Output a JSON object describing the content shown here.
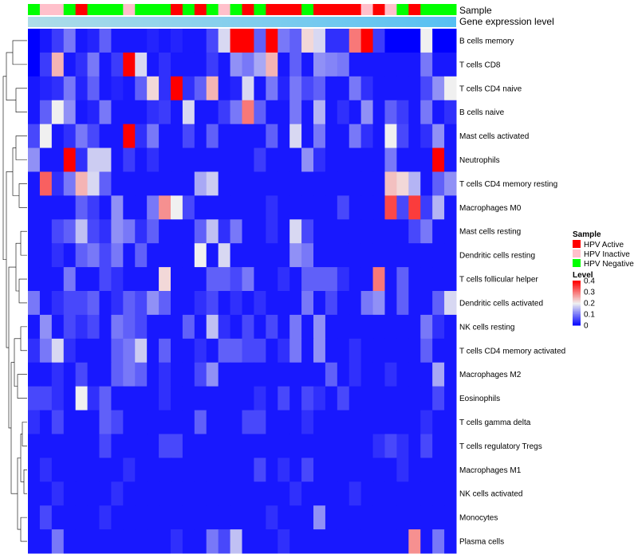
{
  "chart_data": {
    "type": "heatmap",
    "annotation_titles": [
      "Sample",
      "Gene expression level"
    ],
    "sample_labels": [
      "HPV Active",
      "HPV Inactive",
      "HPV Negative"
    ],
    "sample_colors": {
      "HPV Active": "#ff0000",
      "HPV Inactive": "#ffc0cb",
      "HPV Negative": "#00ff00"
    },
    "samples": [
      "N",
      "I",
      "I",
      "N",
      "A",
      "N",
      "N",
      "N",
      "I",
      "N",
      "N",
      "N",
      "A",
      "N",
      "A",
      "N",
      "I",
      "N",
      "A",
      "N",
      "A",
      "A",
      "A",
      "N",
      "A",
      "A",
      "A",
      "A",
      "I",
      "A",
      "I",
      "N",
      "A",
      "N",
      "N",
      "N"
    ],
    "gene_expression_bar": {
      "color_start": "#aedce8",
      "color_end": "#57c0f2"
    },
    "legend": {
      "sample_title": "Sample",
      "level_title": "Level",
      "level_ticks": [
        "0.4",
        "0.3",
        "0.2",
        "0.1",
        "0"
      ],
      "level_range": [
        0,
        0.4
      ]
    },
    "row_labels": [
      "B cells memory",
      "T cells CD8",
      "T cells CD4 naive",
      "B cells naive",
      "Mast cells activated",
      "Neutrophils",
      "T cells CD4 memory resting",
      "Macrophages M0",
      "Mast cells resting",
      "Dendritic cells resting",
      "T cells follicular helper",
      "Dendritic cells activated",
      "NK cells resting",
      "T cells CD4 memory activated",
      "Macrophages M2",
      "Eosinophils",
      "T cells gamma delta",
      "T cells regulatory  Tregs",
      "Macrophages M1",
      "NK cells activated",
      "Monocytes",
      "Plasma cells"
    ],
    "values": [
      [
        0,
        0.02,
        0.05,
        0.1,
        0.02,
        0.03,
        0.08,
        0.02,
        0.02,
        0.02,
        0.03,
        0.02,
        0.03,
        0.02,
        0.02,
        0.06,
        0.18,
        0.4,
        0.4,
        0.08,
        0.4,
        0.1,
        0.08,
        0.22,
        0.18,
        0.04,
        0.04,
        0.3,
        0.4,
        0.05,
        0,
        0,
        0,
        0.2,
        0,
        0
      ],
      [
        0,
        0.05,
        0.25,
        0.02,
        0.04,
        0.1,
        0.02,
        0.05,
        0.4,
        0.18,
        0.02,
        0.04,
        0.02,
        0.02,
        0.02,
        0.05,
        0.02,
        0.12,
        0.1,
        0.14,
        0.25,
        0.02,
        0.08,
        0.02,
        0.12,
        0.11,
        0.1,
        0.02,
        0.02,
        0.02,
        0.02,
        0.02,
        0.02,
        0.1,
        0.02,
        0.02
      ],
      [
        0.02,
        0.03,
        0.04,
        0.1,
        0.03,
        0.08,
        0.02,
        0.03,
        0.02,
        0.08,
        0.22,
        0.04,
        0.4,
        0.04,
        0.08,
        0.25,
        0.02,
        0.03,
        0.18,
        0.02,
        0.1,
        0.03,
        0.1,
        0.06,
        0.08,
        0.02,
        0.02,
        0.1,
        0.04,
        0.02,
        0.02,
        0.02,
        0.02,
        0.06,
        0.12,
        0.2
      ],
      [
        0.02,
        0.08,
        0.2,
        0.12,
        0.02,
        0.03,
        0.1,
        0.02,
        0.02,
        0.02,
        0.04,
        0.05,
        0.02,
        0.18,
        0.02,
        0.02,
        0.05,
        0.1,
        0.3,
        0.08,
        0.02,
        0.02,
        0.1,
        0.02,
        0.15,
        0.02,
        0.04,
        0.02,
        0.12,
        0.02,
        0.08,
        0.05,
        0.02,
        0.1,
        0.02,
        0.04
      ],
      [
        0.06,
        0.2,
        0.02,
        0.04,
        0.1,
        0.06,
        0.02,
        0.02,
        0.4,
        0.04,
        0.1,
        0.02,
        0.02,
        0.06,
        0.02,
        0.08,
        0.02,
        0.02,
        0.02,
        0.02,
        0.08,
        0.02,
        0.18,
        0.02,
        0.1,
        0.02,
        0.02,
        0.1,
        0.04,
        0.02,
        0.2,
        0.06,
        0.02,
        0.04,
        0.12,
        0.02
      ],
      [
        0.12,
        0.02,
        0.02,
        0.4,
        0.04,
        0.17,
        0.17,
        0.02,
        0.05,
        0.02,
        0.04,
        0.02,
        0.02,
        0.02,
        0.02,
        0.02,
        0.02,
        0.02,
        0.02,
        0.05,
        0.02,
        0.02,
        0.02,
        0.12,
        0.04,
        0.02,
        0.02,
        0.02,
        0.02,
        0.02,
        0.1,
        0.02,
        0.02,
        0.02,
        0.4,
        0.02
      ],
      [
        0.02,
        0.32,
        0.04,
        0.1,
        0.25,
        0.18,
        0.08,
        0.02,
        0.02,
        0.02,
        0.02,
        0.02,
        0.02,
        0.02,
        0.14,
        0.17,
        0.02,
        0.02,
        0.02,
        0.02,
        0.02,
        0.02,
        0.02,
        0.02,
        0.02,
        0.02,
        0.02,
        0.02,
        0.02,
        0.02,
        0.24,
        0.22,
        0.15,
        0.02,
        0.08,
        0.12
      ],
      [
        0.02,
        0.02,
        0.02,
        0.02,
        0.08,
        0.05,
        0.02,
        0.12,
        0.02,
        0.02,
        0.1,
        0.28,
        0.2,
        0.06,
        0.02,
        0.02,
        0.02,
        0.02,
        0.02,
        0.02,
        0.04,
        0.02,
        0.02,
        0.02,
        0.02,
        0.02,
        0.06,
        0.02,
        0.02,
        0.02,
        0.34,
        0.06,
        0.35,
        0.05,
        0.15,
        0.02
      ],
      [
        0.02,
        0.02,
        0.06,
        0.08,
        0.16,
        0.06,
        0.04,
        0.12,
        0.1,
        0.04,
        0.08,
        0.02,
        0.02,
        0.02,
        0.08,
        0.16,
        0.04,
        0.1,
        0.02,
        0.02,
        0.04,
        0.02,
        0.18,
        0.06,
        0.02,
        0.02,
        0.02,
        0.02,
        0.02,
        0.02,
        0.02,
        0.02,
        0.06,
        0.1,
        0.02,
        0.02
      ],
      [
        0.02,
        0.02,
        0.04,
        0.02,
        0.08,
        0.1,
        0.06,
        0.1,
        0.02,
        0.08,
        0.02,
        0.02,
        0.02,
        0.02,
        0.2,
        0.02,
        0.18,
        0.02,
        0.02,
        0.02,
        0.02,
        0.02,
        0.12,
        0.1,
        0.02,
        0.02,
        0.02,
        0.02,
        0.02,
        0.02,
        0.02,
        0.02,
        0.02,
        0.02,
        0.02,
        0.02
      ],
      [
        0.02,
        0.02,
        0.02,
        0.1,
        0.02,
        0.02,
        0.06,
        0.04,
        0.02,
        0.02,
        0.02,
        0.22,
        0.02,
        0.02,
        0.02,
        0.08,
        0.08,
        0.06,
        0.1,
        0.02,
        0.02,
        0.04,
        0.02,
        0.08,
        0.08,
        0.08,
        0.04,
        0.02,
        0.02,
        0.3,
        0.02,
        0.08,
        0.02,
        0.02,
        0.02,
        0.02
      ],
      [
        0.1,
        0.02,
        0.04,
        0.06,
        0.06,
        0.08,
        0.02,
        0.04,
        0.08,
        0.06,
        0.12,
        0.08,
        0.02,
        0.02,
        0.04,
        0.06,
        0.02,
        0.04,
        0.02,
        0.04,
        0.02,
        0.02,
        0.02,
        0.1,
        0.02,
        0.06,
        0.02,
        0.02,
        0.1,
        0.12,
        0.02,
        0.08,
        0.02,
        0.02,
        0.08,
        0.18
      ],
      [
        0.02,
        0.12,
        0.02,
        0.06,
        0.04,
        0.06,
        0.02,
        0.1,
        0.08,
        0.06,
        0.02,
        0.02,
        0.02,
        0.08,
        0.02,
        0.16,
        0.04,
        0.02,
        0.06,
        0.02,
        0.06,
        0.02,
        0.1,
        0.02,
        0.12,
        0.02,
        0.02,
        0.02,
        0.02,
        0.02,
        0.02,
        0.02,
        0.02,
        0.1,
        0.04,
        0.02
      ],
      [
        0.04,
        0.1,
        0.18,
        0.04,
        0.02,
        0.02,
        0.02,
        0.08,
        0.1,
        0.17,
        0.02,
        0.08,
        0.02,
        0.02,
        0.04,
        0.02,
        0.08,
        0.08,
        0.06,
        0.06,
        0.02,
        0.04,
        0.1,
        0.02,
        0.12,
        0.02,
        0.02,
        0.04,
        0.02,
        0.02,
        0.02,
        0.02,
        0.02,
        0.08,
        0.02,
        0.02
      ],
      [
        0.02,
        0.02,
        0.04,
        0.02,
        0.06,
        0.02,
        0.02,
        0.08,
        0.1,
        0.08,
        0.02,
        0.04,
        0.02,
        0.02,
        0.06,
        0.12,
        0.02,
        0.02,
        0.02,
        0.02,
        0.02,
        0.02,
        0.02,
        0.02,
        0.02,
        0.08,
        0.02,
        0.04,
        0.02,
        0.02,
        0.04,
        0.02,
        0.02,
        0.02,
        0.14,
        0.02
      ],
      [
        0.06,
        0.06,
        0.04,
        0.02,
        0.2,
        0.04,
        0.08,
        0.02,
        0.02,
        0.02,
        0.02,
        0.04,
        0.02,
        0.02,
        0.02,
        0.02,
        0.02,
        0.02,
        0.02,
        0.04,
        0.02,
        0.06,
        0.02,
        0.06,
        0.04,
        0.02,
        0.06,
        0.02,
        0.02,
        0.02,
        0.02,
        0.02,
        0.02,
        0.02,
        0.06,
        0.02
      ],
      [
        0.04,
        0.02,
        0.06,
        0.02,
        0.02,
        0.02,
        0.08,
        0.06,
        0.02,
        0.02,
        0.02,
        0.02,
        0.02,
        0.02,
        0.08,
        0.02,
        0.02,
        0.02,
        0.06,
        0.06,
        0.02,
        0.02,
        0.02,
        0.04,
        0.02,
        0.02,
        0.02,
        0.02,
        0.02,
        0.02,
        0.02,
        0.02,
        0.02,
        0.04,
        0.02,
        0.02
      ],
      [
        0.02,
        0.02,
        0.02,
        0.02,
        0.02,
        0.02,
        0.06,
        0.02,
        0.02,
        0.02,
        0.02,
        0.06,
        0.06,
        0.02,
        0.02,
        0.02,
        0.02,
        0.02,
        0.02,
        0.02,
        0.02,
        0.02,
        0.02,
        0.02,
        0.02,
        0.02,
        0.02,
        0.02,
        0.02,
        0.04,
        0.06,
        0.04,
        0.02,
        0.06,
        0.02,
        0.02
      ],
      [
        0.02,
        0.04,
        0.02,
        0.02,
        0.02,
        0.02,
        0.02,
        0.02,
        0.04,
        0.02,
        0.02,
        0.02,
        0.02,
        0.02,
        0.02,
        0.02,
        0.02,
        0.02,
        0.02,
        0.06,
        0.02,
        0.04,
        0.02,
        0.06,
        0.02,
        0.02,
        0.02,
        0.02,
        0.02,
        0.02,
        0.02,
        0.04,
        0.02,
        0.02,
        0.02,
        0.02
      ],
      [
        0.02,
        0.02,
        0.04,
        0.02,
        0.02,
        0.02,
        0.02,
        0.04,
        0.02,
        0.02,
        0.02,
        0.02,
        0.02,
        0.02,
        0.02,
        0.02,
        0.02,
        0.02,
        0.02,
        0.02,
        0.02,
        0.02,
        0.04,
        0.02,
        0.02,
        0.02,
        0.02,
        0.04,
        0.02,
        0.02,
        0.02,
        0.02,
        0.02,
        0.02,
        0.02,
        0.02
      ],
      [
        0.02,
        0.06,
        0.02,
        0.02,
        0.02,
        0.02,
        0.04,
        0.02,
        0.02,
        0.02,
        0.02,
        0.02,
        0.02,
        0.02,
        0.02,
        0.02,
        0.02,
        0.02,
        0.02,
        0.02,
        0.04,
        0.02,
        0.02,
        0.02,
        0.12,
        0.02,
        0.02,
        0.02,
        0.02,
        0.02,
        0.02,
        0.02,
        0.02,
        0.02,
        0.02,
        0.02
      ],
      [
        0.02,
        0.02,
        0.1,
        0.02,
        0.02,
        0.02,
        0.02,
        0.02,
        0.02,
        0.02,
        0.02,
        0.02,
        0.04,
        0.02,
        0.02,
        0.1,
        0.06,
        0.16,
        0.02,
        0.02,
        0.02,
        0.04,
        0.02,
        0.02,
        0.02,
        0.02,
        0.02,
        0.02,
        0.02,
        0.02,
        0.02,
        0.02,
        0.28,
        0.02,
        0.1,
        0.02
      ]
    ],
    "color_scale": [
      {
        "level": 0,
        "color": "#0000ff"
      },
      {
        "level": 0.2,
        "color": "#f0f0f0"
      },
      {
        "level": 0.4,
        "color": "#ff0000"
      }
    ]
  }
}
